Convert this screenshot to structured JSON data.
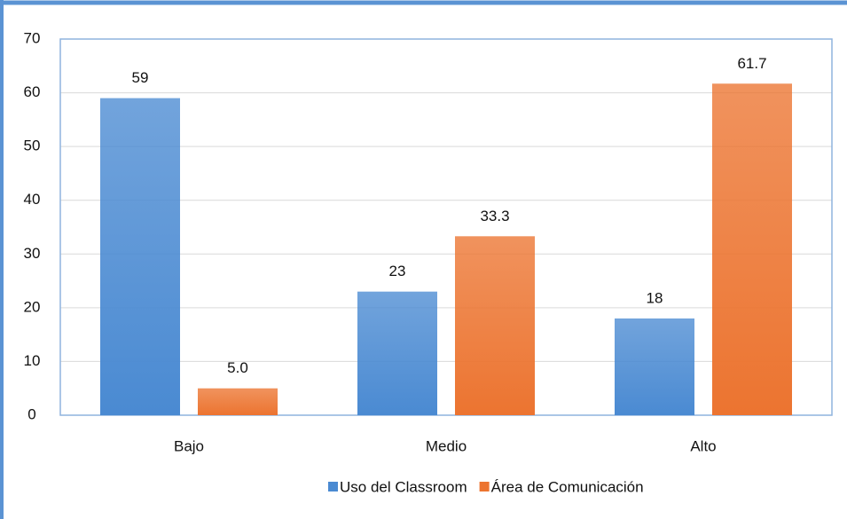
{
  "chart_data": {
    "type": "bar",
    "categories": [
      "Bajo",
      "Medio",
      "Alto"
    ],
    "series": [
      {
        "name": "Uso del Classroom",
        "color": "#4a8ad2",
        "values": [
          59,
          23,
          18
        ],
        "value_labels": [
          "59",
          "23",
          "18"
        ]
      },
      {
        "name": "Área de Comunicación",
        "color": "#ec7430",
        "values": [
          5,
          33.3,
          61.7
        ],
        "value_labels": [
          "5.0",
          "33.3",
          "61.7"
        ]
      }
    ],
    "ylim": [
      0,
      70
    ],
    "yticks": [
      0,
      10,
      20,
      30,
      40,
      50,
      60,
      70
    ],
    "grid": true,
    "legend": "bottom"
  }
}
